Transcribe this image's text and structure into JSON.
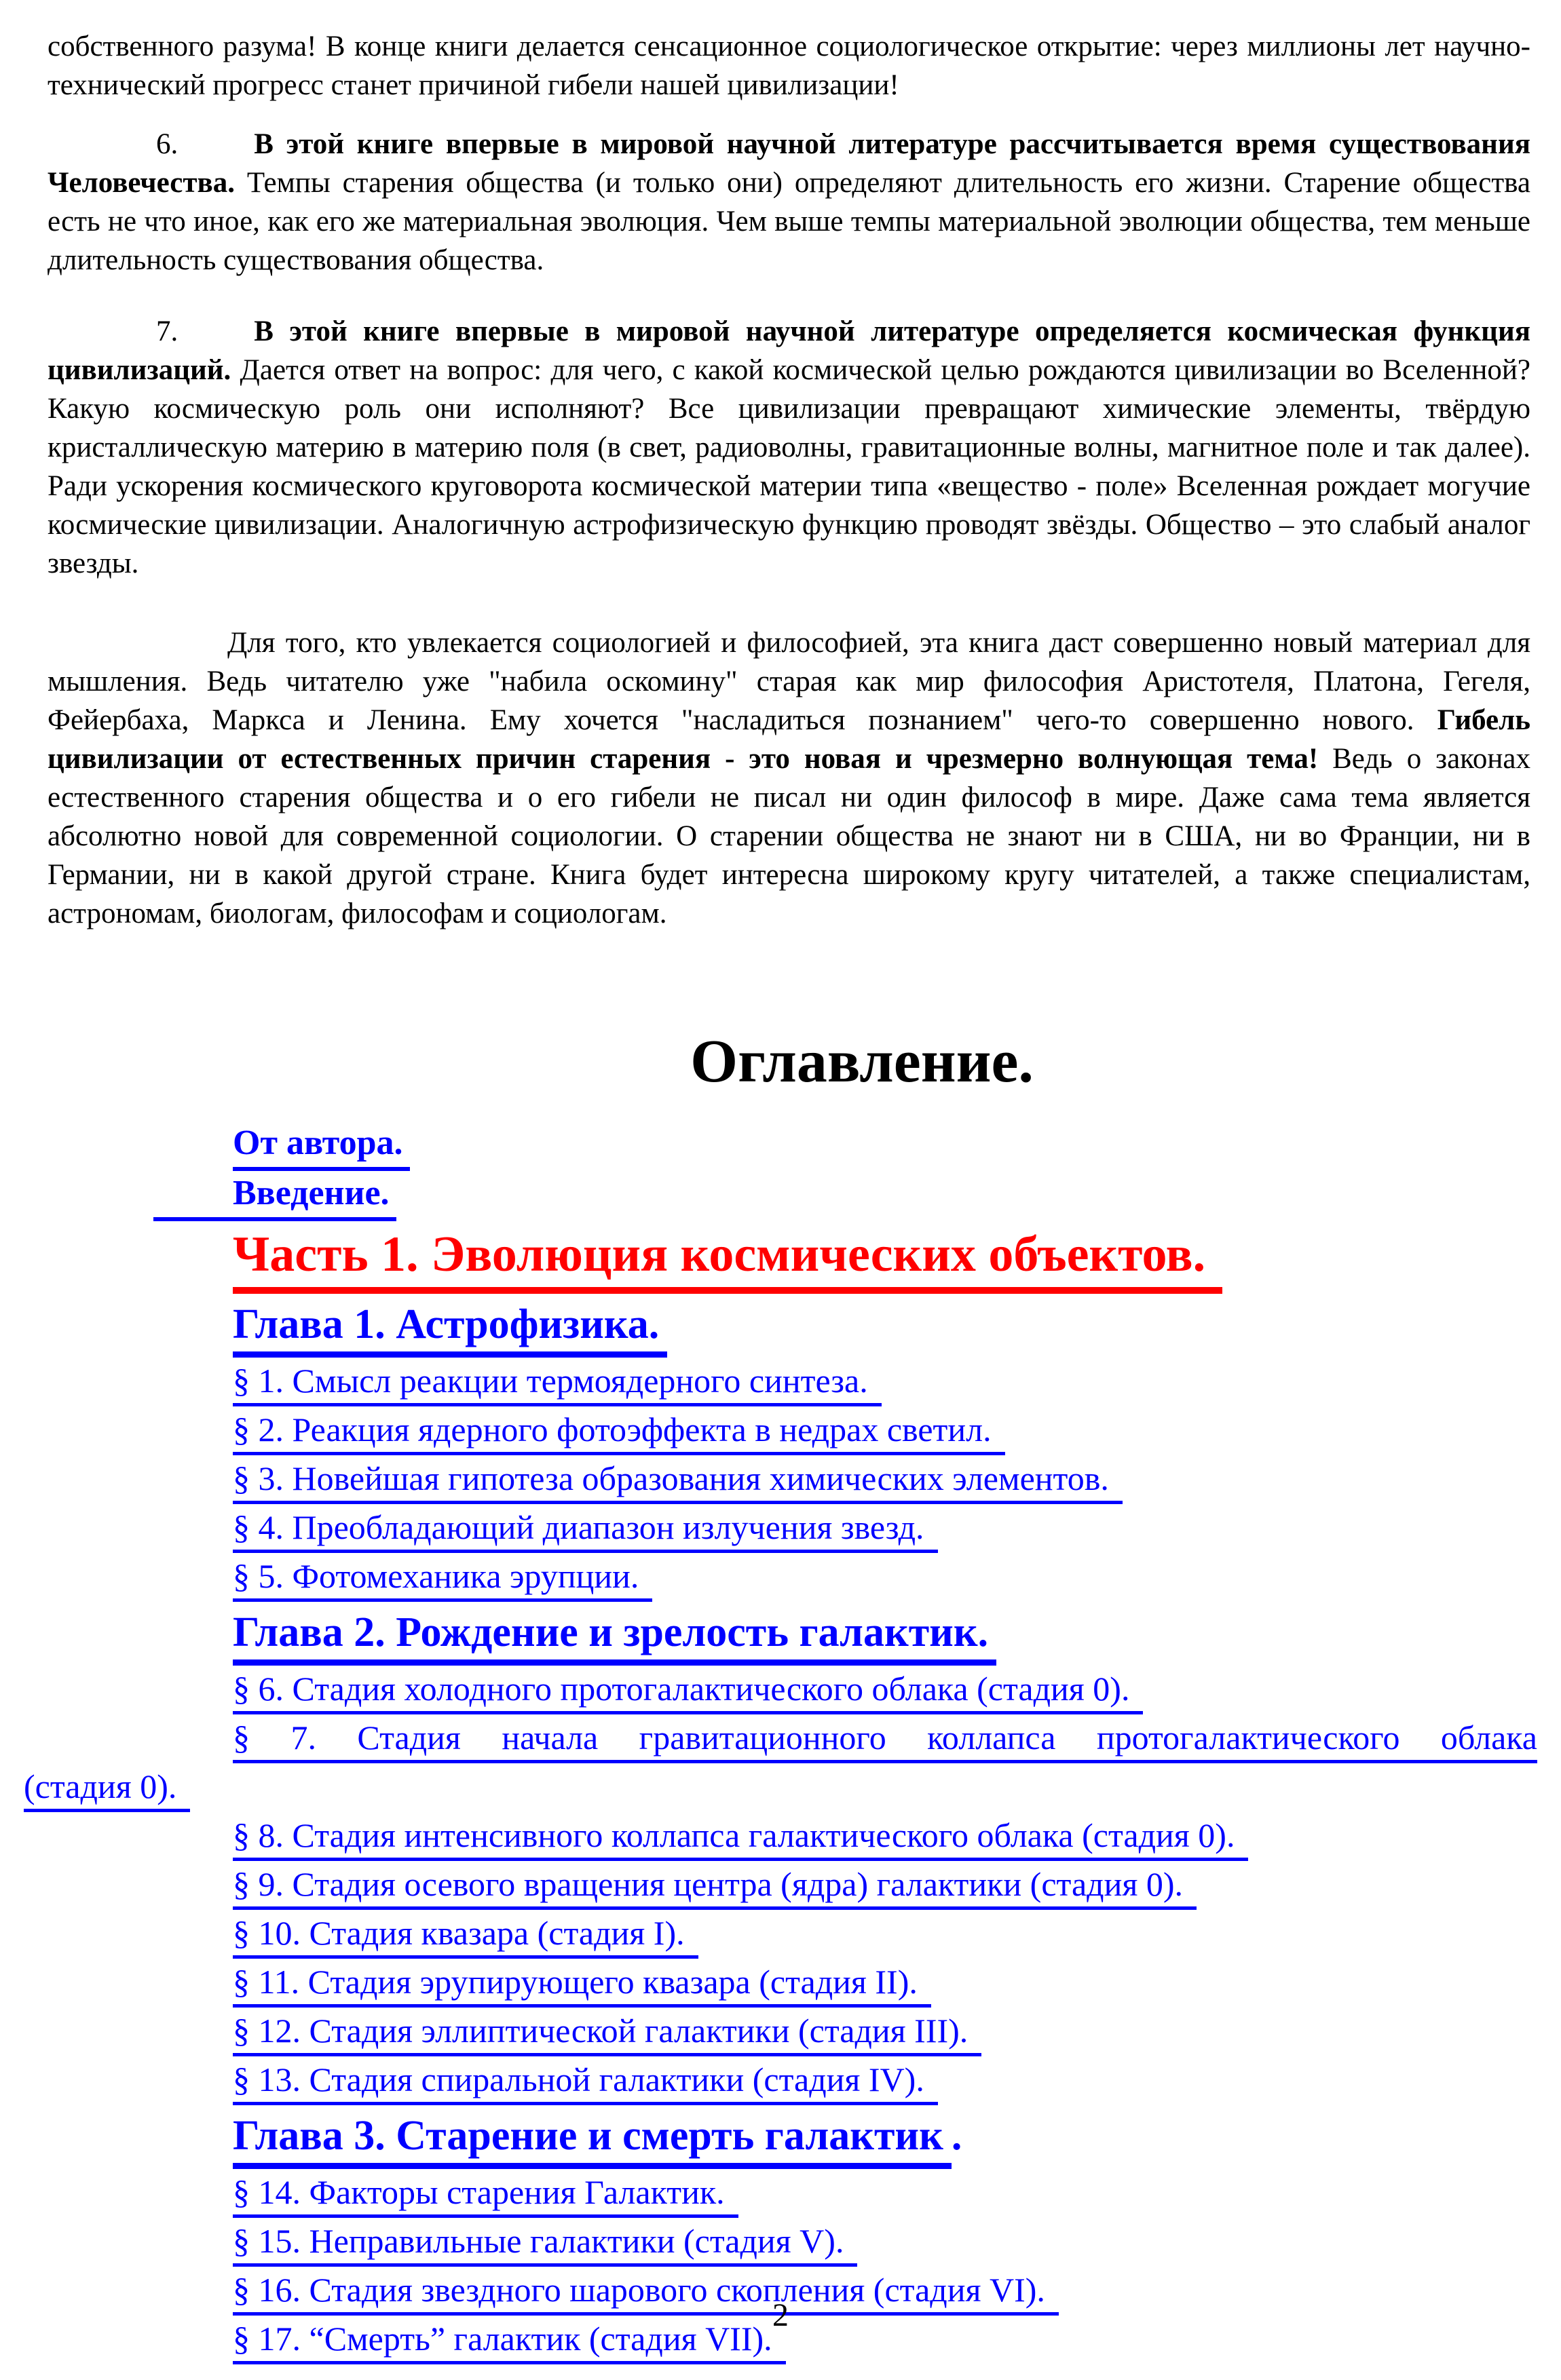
{
  "colors": {
    "link_blue": "#0000FF",
    "part_red": "#FF0000",
    "text_black": "#000000"
  },
  "body": {
    "continuation": "собственного разума! В конце книги делается сенсационное социологическое открытие: через миллионы лет научно-технический прогресс станет причиной гибели нашей цивилизации!",
    "item6": {
      "number": "6.",
      "bold": "В этой книге впервые в мировой научной литературе рассчитывается время существования Человечества.",
      "text": " Темпы старения общества (и только они) определяют длительность его жизни. Старение общества есть не что иное, как его же материальная эволюция. Чем выше темпы материальной эволюции общества, тем меньше длительность существования общества."
    },
    "item7": {
      "number": "7.",
      "bold": "В этой книге впервые в мировой научной литературе определяется космическая функция цивилизаций.",
      "text": " Дается ответ на вопрос: для чего, с какой космической целью рождаются цивилизации во Вселенной? Какую космическую роль они исполняют? Все цивилизации превращают химические элементы, твёрдую кристаллическую материю в материю поля (в свет, радиоволны, гравитационные волны, магнитное поле и так далее). Ради ускорения космического круговорота космической материи типа «вещество - поле» Вселенная рождает могучие космические цивилизации. Аналогичную астрофизическую функцию проводят звёзды. Общество – это слабый аналог звезды."
    },
    "closing": {
      "pre": "Для того, кто увлекается социологией и философией, эта книга даст совершенно новый материал для мышления. Ведь читателю уже \"набила оскомину\" старая как мир философия Аристотеля, Платона, Гегеля, Фейербаха, Маркса и Ленина. Ему хочется \"насладиться познанием\" чего-то совершенно нового. ",
      "bold": "Гибель цивилизации от естественных причин старения - это новая и чрезмерно волнующая тема!",
      "post": " Ведь о законах естественного старения общества и о его гибели не писал ни один философ в мире. Даже сама тема является абсолютно новой для современной социологии. О старении общества не знают ни в США, ни во Франции, ни в Германии, ни в какой другой стране. Книга будет интересна широкому кругу читателей, а также специалистам, астрономам, биологам, философам и социологам."
    }
  },
  "toc": {
    "title": "Оглавление.",
    "entries": [
      {
        "label": "От автора."
      },
      {
        "label": "Введение."
      },
      {
        "label": "Часть 1. Эволюция космических объектов."
      },
      {
        "label": "Глава 1. Астрофизика."
      },
      {
        "label": "§ 1. Смысл реакции термоядерного синтеза."
      },
      {
        "label": "§ 2. Реакция ядерного фотоэффекта в недрах светил."
      },
      {
        "label": "§ 3. Новейшая гипотеза образования химических элементов."
      },
      {
        "label": "§ 4. Преобладающий диапазон излучения звезд."
      },
      {
        "label": "§ 5. Фотомеханика эрупции."
      },
      {
        "label": "Глава 2. Рождение и зрелость галактик."
      },
      {
        "label": "§ 6. Стадия холодного протогалактического облака (стадия 0)."
      },
      {
        "label": "§ 7. Стадия начала гравитационного коллапса протогалактического облака",
        "label2": "(стадия 0)."
      },
      {
        "label": "§ 8. Стадия интенсивного коллапса галактического облака (стадия 0)."
      },
      {
        "label": "§ 9. Стадия осевого вращения центра (ядра) галактики (стадия 0)."
      },
      {
        "label": "§ 10. Стадия квазара (стадия I)."
      },
      {
        "label": "§ 11. Стадия эрупирующего квазара (стадия II)."
      },
      {
        "label": "§ 12. Стадия эллиптической галактики (стадия III)."
      },
      {
        "label": "§ 13. Стадия спиральной галактики (стадия IV)."
      },
      {
        "label": "Глава 3. Старение и смерть галактик",
        "tail": "."
      },
      {
        "label": "§ 14. Факторы старения Галактик."
      },
      {
        "label": "§ 15. Неправильные галактики (стадия V)."
      },
      {
        "label": "§ 16. Стадия звездного шарового скопления (стадия VI)."
      },
      {
        "label": "§ 17. “Смерть” галактик (стадия VII)."
      }
    ]
  },
  "page_number": "2"
}
